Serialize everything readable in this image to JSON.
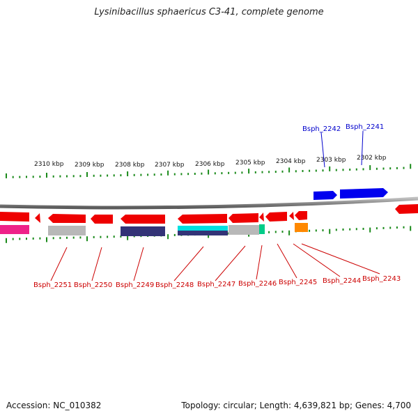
{
  "title": "Lysinibacillus sphaericus C3-41, complete genome",
  "footer": {
    "accession": "Accession: NC_010382",
    "stats": "Topology: circular; Length: 4,639,821 bp; Genes: 4,700"
  },
  "colors": {
    "forward_label": "#0000cc",
    "reverse_label": "#cc0000",
    "tick": "#1a8a1a",
    "backbone": "#8c8c8c"
  },
  "scale": {
    "tick_labels": [
      "2310 kbp",
      "2309 kbp",
      "2308 kbp",
      "2307 kbp",
      "2306 kbp",
      "2305 kbp",
      "2304 kbp",
      "2303 kbp",
      "2302 kbp"
    ]
  },
  "forward_genes": [
    {
      "label": "Bsph_2242",
      "color": "#0000ee"
    },
    {
      "label": "Bsph_2241",
      "color": "#0000ee"
    }
  ],
  "reverse_genes": [
    {
      "label": "Bsph_2251"
    },
    {
      "label": "Bsph_2250"
    },
    {
      "label": "Bsph_2249"
    },
    {
      "label": "Bsph_2248"
    },
    {
      "label": "Bsph_2247"
    },
    {
      "label": "Bsph_2246"
    },
    {
      "label": "Bsph_2245"
    },
    {
      "label": "Bsph_2244"
    },
    {
      "label": "Bsph_2243"
    }
  ],
  "cog_bars": [
    {
      "color": "#ee2288"
    },
    {
      "color": "#b8b8b8"
    },
    {
      "color": "#333377"
    },
    {
      "color": "#00e0e0"
    },
    {
      "color": "#b8b8b8"
    },
    {
      "color": "#00cc88"
    },
    {
      "color": "#ff8800"
    }
  ]
}
